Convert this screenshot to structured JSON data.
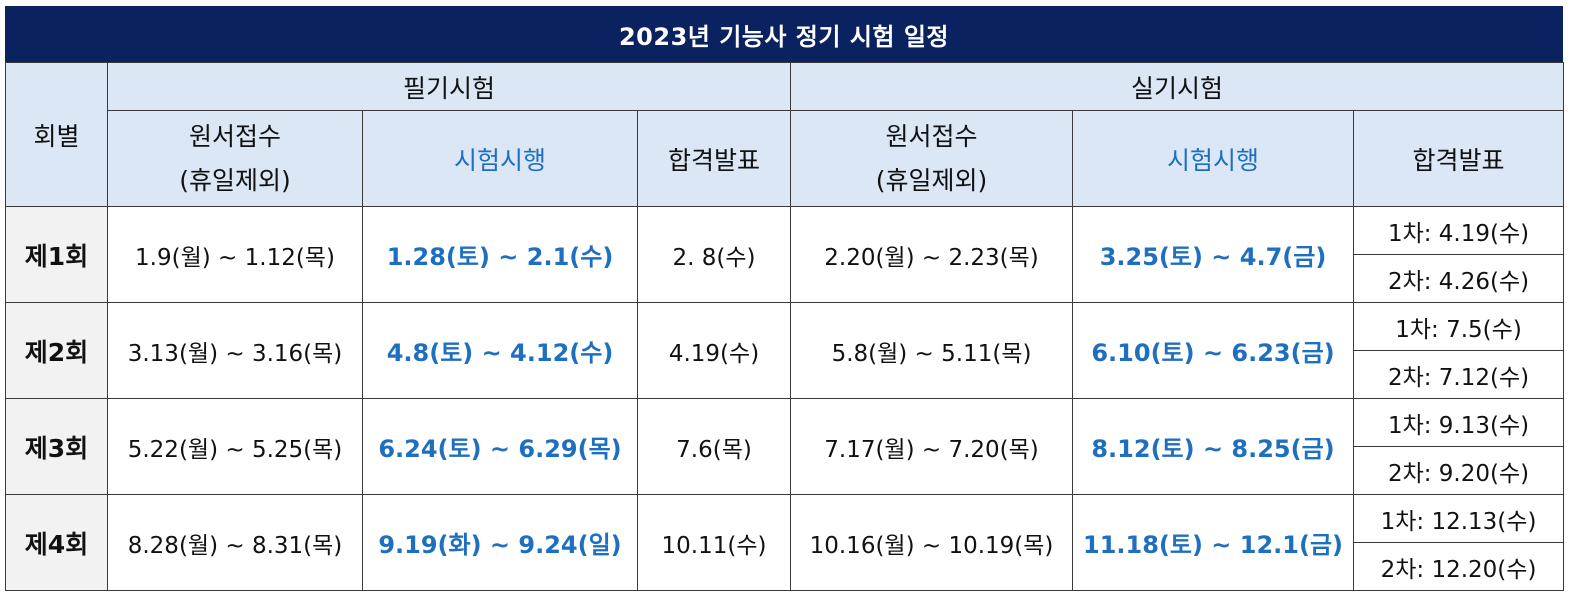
{
  "title": "2023년 기능사 정기 시험 일정",
  "headers": {
    "round": "회별",
    "written": "필기시험",
    "practical": "실기시험",
    "apply_line1": "원서접수",
    "apply_line2": "(휴일제외)",
    "exam": "시험시행",
    "result": "합격발표"
  },
  "rows": [
    {
      "round": "제1회",
      "written_apply": "1.9(월) ~ 1.12(목)",
      "written_exam": "1.28(토) ~ 2.1(수)",
      "written_result": "2. 8(수)",
      "practical_apply": "2.20(월) ~ 2.23(목)",
      "practical_exam": "3.25(토) ~ 4.7(금)",
      "result1": "1차: 4.19(수)",
      "result2": "2차: 4.26(수)"
    },
    {
      "round": "제2회",
      "written_apply": "3.13(월) ~ 3.16(목)",
      "written_exam": "4.8(토) ~ 4.12(수)",
      "written_result": "4.19(수)",
      "practical_apply": "5.8(월) ~ 5.11(목)",
      "practical_exam": "6.10(토) ~ 6.23(금)",
      "result1": "1차: 7.5(수)",
      "result2": "2차: 7.12(수)"
    },
    {
      "round": "제3회",
      "written_apply": "5.22(월) ~ 5.25(목)",
      "written_exam": "6.24(토) ~ 6.29(목)",
      "written_result": "7.6(목)",
      "practical_apply": "7.17(월) ~ 7.20(목)",
      "practical_exam": "8.12(토) ~ 8.25(금)",
      "result1": "1차: 9.13(수)",
      "result2": "2차: 9.20(수)"
    },
    {
      "round": "제4회",
      "written_apply": "8.28(월) ~ 8.31(목)",
      "written_exam": "9.19(화) ~ 9.24(일)",
      "written_result": "10.11(수)",
      "practical_apply": "10.16(월) ~ 10.19(목)",
      "practical_exam": "11.18(토) ~ 12.1(금)",
      "result1": "1차: 12.13(수)",
      "result2": "2차: 12.20(수)"
    }
  ],
  "colors": {
    "title_bg": "#0b2260",
    "header_bg": "#dbe7f5",
    "accent_blue": "#1f6fc0",
    "round_bg": "#f2f2f2"
  }
}
